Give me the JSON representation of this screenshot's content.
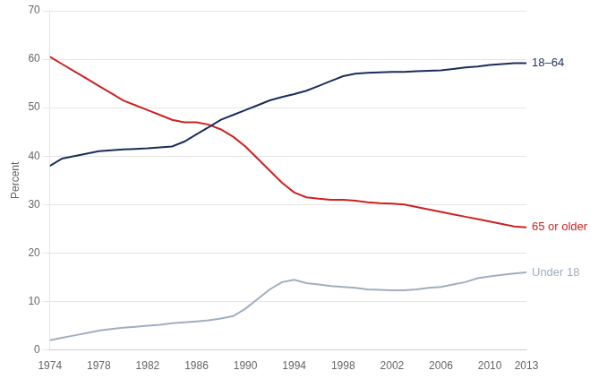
{
  "chart_data": {
    "type": "line",
    "y_label": "Percent",
    "x": [
      1974,
      1975,
      1976,
      1977,
      1978,
      1979,
      1980,
      1981,
      1982,
      1983,
      1984,
      1985,
      1986,
      1987,
      1988,
      1989,
      1990,
      1991,
      1992,
      1993,
      1994,
      1995,
      1996,
      1997,
      1998,
      1999,
      2000,
      2001,
      2002,
      2003,
      2004,
      2005,
      2006,
      2007,
      2008,
      2009,
      2010,
      2011,
      2012,
      2013
    ],
    "series": [
      {
        "name": "18–64",
        "color": "#1a2e5a",
        "values": [
          38.0,
          39.5,
          40.0,
          40.5,
          41.0,
          41.2,
          41.4,
          41.5,
          41.6,
          41.8,
          42.0,
          43.0,
          44.5,
          46.0,
          47.5,
          48.5,
          49.5,
          50.5,
          51.5,
          52.2,
          52.8,
          53.5,
          54.5,
          55.5,
          56.5,
          57.0,
          57.2,
          57.3,
          57.4,
          57.4,
          57.5,
          57.6,
          57.7,
          58.0,
          58.3,
          58.5,
          58.8,
          59.0,
          59.2,
          59.2
        ]
      },
      {
        "name": "65 or older",
        "color": "#cc2222",
        "values": [
          60.5,
          59.0,
          57.5,
          56.0,
          54.5,
          53.0,
          51.5,
          50.5,
          49.5,
          48.5,
          47.5,
          47.0,
          47.0,
          46.5,
          45.5,
          44.0,
          42.0,
          39.5,
          37.0,
          34.5,
          32.5,
          31.5,
          31.2,
          31.0,
          31.0,
          30.8,
          30.5,
          30.3,
          30.2,
          30.0,
          29.5,
          29.0,
          28.5,
          28.0,
          27.5,
          27.0,
          26.5,
          26.0,
          25.5,
          25.3
        ]
      },
      {
        "name": "Under 18",
        "color": "#a0aec0",
        "values": [
          2.0,
          2.5,
          3.0,
          3.5,
          4.0,
          4.3,
          4.6,
          4.8,
          5.0,
          5.2,
          5.5,
          5.7,
          5.9,
          6.1,
          6.5,
          7.0,
          8.5,
          10.5,
          12.5,
          14.0,
          14.5,
          13.8,
          13.5,
          13.2,
          13.0,
          12.8,
          12.5,
          12.4,
          12.3,
          12.3,
          12.5,
          12.8,
          13.0,
          13.5,
          14.0,
          14.8,
          15.2,
          15.5,
          15.8,
          16.0
        ]
      }
    ],
    "xlim": [
      1974,
      2013
    ],
    "ylim": [
      0,
      70
    ],
    "xticks": [
      1974,
      1978,
      1982,
      1986,
      1990,
      1994,
      1998,
      2002,
      2006,
      2010,
      2013
    ],
    "yticks": [
      0,
      10,
      20,
      30,
      40,
      50,
      60,
      70
    ],
    "grid": "y"
  }
}
